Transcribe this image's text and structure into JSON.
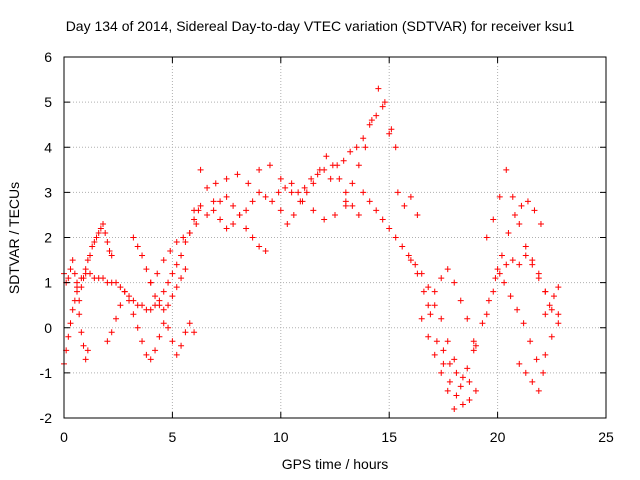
{
  "chart_data": {
    "type": "scatter",
    "title": "Day 134 of 2014, Sidereal Day-to-day VTEC variation (SDTVAR) for receiver ksu1",
    "xlabel": "GPS time / hours",
    "ylabel": "SDTVAR / TECUs",
    "xlim": [
      0,
      25
    ],
    "ylim": [
      -2,
      6
    ],
    "xticks": [
      "0",
      "5",
      "10",
      "15",
      "20",
      "25"
    ],
    "yticks": [
      "-2",
      "-1",
      "0",
      "1",
      "2",
      "3",
      "4",
      "5",
      "6"
    ],
    "grid": true,
    "marker": "+",
    "color": "#ff0000",
    "series": [
      {
        "x": [
          0.0,
          0.1,
          0.2,
          0.3,
          0.4,
          0.5,
          0.6,
          0.7,
          0.8,
          0.9,
          1.0,
          1.1,
          1.2,
          1.3,
          1.4,
          1.5,
          1.6,
          1.7,
          1.8,
          1.9,
          2.0,
          2.1,
          2.2
        ],
        "y": [
          1.2,
          1.0,
          1.1,
          1.3,
          1.5,
          1.2,
          0.9,
          0.6,
          0.9,
          1.1,
          1.3,
          1.5,
          1.6,
          1.8,
          1.9,
          2.0,
          2.1,
          2.2,
          2.3,
          2.1,
          1.9,
          1.7,
          1.6
        ]
      },
      {
        "x": [
          0.0,
          0.1,
          0.2,
          0.3,
          0.4,
          0.5,
          0.6,
          0.7,
          0.8,
          0.9,
          1.0,
          1.1
        ],
        "y": [
          -0.8,
          -0.5,
          -0.2,
          0.1,
          0.4,
          0.6,
          0.8,
          0.3,
          -0.1,
          -0.4,
          -0.7,
          -0.5
        ]
      },
      {
        "x": [
          0.6,
          0.8,
          1.0,
          1.2,
          1.4,
          1.6,
          1.8,
          2.0,
          2.2,
          2.4,
          2.6,
          2.8,
          3.0,
          3.2,
          3.4,
          3.6,
          3.8,
          4.0,
          4.2,
          4.4,
          4.6,
          4.8,
          5.0,
          5.2,
          5.4,
          5.6,
          5.8,
          6.0,
          6.2
        ],
        "y": [
          1.0,
          1.1,
          1.2,
          1.2,
          1.1,
          1.1,
          1.1,
          1.0,
          1.0,
          1.0,
          0.9,
          0.8,
          0.7,
          0.6,
          0.5,
          0.5,
          0.4,
          0.4,
          0.5,
          0.6,
          0.8,
          1.0,
          1.2,
          1.4,
          1.6,
          1.9,
          2.1,
          2.4,
          2.6
        ]
      },
      {
        "x": [
          2.0,
          2.2,
          2.4,
          2.6,
          2.8,
          3.0,
          3.2,
          3.4,
          3.6,
          3.8,
          4.0,
          4.2,
          4.4,
          4.6,
          4.8,
          5.0,
          5.2,
          5.4,
          5.6,
          5.8,
          6.0
        ],
        "y": [
          -0.3,
          -0.1,
          0.2,
          0.5,
          0.8,
          0.6,
          0.3,
          0.0,
          -0.3,
          -0.6,
          -0.7,
          -0.5,
          -0.2,
          0.1,
          0.0,
          -0.3,
          -0.6,
          -0.4,
          -0.1,
          0.1,
          -0.1
        ]
      },
      {
        "x": [
          3.2,
          3.4,
          3.6,
          3.8,
          4.0,
          4.2,
          4.4,
          4.6,
          4.8,
          5.0,
          5.2,
          5.4,
          5.6
        ],
        "y": [
          2.0,
          1.8,
          1.6,
          1.3,
          1.0,
          0.7,
          0.5,
          0.4,
          0.5,
          0.7,
          0.9,
          1.1,
          1.3
        ]
      },
      {
        "x": [
          4.0,
          4.3,
          4.6,
          4.9,
          5.2,
          5.5,
          5.8,
          6.1
        ],
        "y": [
          1.0,
          1.2,
          1.5,
          1.7,
          1.9,
          2.0,
          2.1,
          2.3
        ]
      },
      {
        "x": [
          6.0,
          6.3,
          6.6,
          6.9,
          7.2,
          7.5,
          7.8,
          8.1,
          8.4,
          8.7,
          9.0,
          9.3,
          9.6,
          9.9,
          10.2,
          10.5,
          10.8,
          11.1,
          11.4,
          11.7,
          12.0,
          12.3,
          12.6,
          12.9,
          13.2,
          13.5,
          13.8,
          14.1,
          14.4,
          14.7,
          15.0,
          15.3
        ],
        "y": [
          2.6,
          2.7,
          2.5,
          2.6,
          2.8,
          2.9,
          2.7,
          2.5,
          2.6,
          2.8,
          3.0,
          2.9,
          2.8,
          3.0,
          3.1,
          3.2,
          3.0,
          3.1,
          3.3,
          3.4,
          3.5,
          3.3,
          3.6,
          3.7,
          3.9,
          4.0,
          4.2,
          4.5,
          4.7,
          4.9,
          4.3,
          4.0
        ]
      },
      {
        "x": [
          6.3,
          6.6,
          6.9,
          7.2,
          7.5,
          7.8,
          8.1,
          8.4,
          8.7,
          9.0,
          9.3
        ],
        "y": [
          3.5,
          3.1,
          2.8,
          2.4,
          2.2,
          2.3,
          2.5,
          2.2,
          2.0,
          1.8,
          1.7
        ]
      },
      {
        "x": [
          7.0,
          7.5,
          8.0,
          8.5,
          9.0,
          9.5,
          10.0,
          10.5,
          11.0,
          11.5,
          12.0,
          12.5,
          13.0
        ],
        "y": [
          3.2,
          3.3,
          3.4,
          3.2,
          3.5,
          3.6,
          3.3,
          3.0,
          2.8,
          2.6,
          2.4,
          2.5,
          2.7
        ]
      },
      {
        "x": [
          10.0,
          10.3,
          10.6,
          10.9,
          11.2,
          11.5,
          11.8,
          12.1,
          12.4,
          12.7,
          13.0,
          13.3,
          13.6
        ],
        "y": [
          2.6,
          2.3,
          2.5,
          2.8,
          3.0,
          3.2,
          3.5,
          3.8,
          3.6,
          3.3,
          3.0,
          2.7,
          2.5
        ]
      },
      {
        "x": [
          13.0,
          13.3,
          13.6,
          13.9,
          14.2,
          14.5,
          14.8,
          15.1,
          15.4,
          15.7,
          16.0,
          16.3
        ],
        "y": [
          2.8,
          3.2,
          3.6,
          4.0,
          4.6,
          5.3,
          5.0,
          4.4,
          3.0,
          2.7,
          2.9,
          2.5
        ]
      },
      {
        "x": [
          13.8,
          14.1,
          14.4,
          14.7,
          15.0,
          15.3,
          15.6,
          15.9,
          16.2,
          16.5,
          16.8,
          17.1,
          17.4,
          17.7,
          18.0
        ],
        "y": [
          3.0,
          2.8,
          2.6,
          2.4,
          2.2,
          2.0,
          1.8,
          1.6,
          1.4,
          1.2,
          0.9,
          0.5,
          0.2,
          -0.3,
          -0.7
        ]
      },
      {
        "x": [
          16.0,
          16.3,
          16.6,
          16.9,
          17.2,
          17.5,
          17.8,
          18.1,
          18.4,
          18.7
        ],
        "y": [
          1.5,
          1.2,
          0.8,
          0.3,
          -0.3,
          -0.8,
          -1.2,
          -1.5,
          -1.7,
          -1.6
        ]
      },
      {
        "x": [
          16.5,
          16.8,
          17.1,
          17.4,
          17.7,
          18.0,
          18.3,
          18.6,
          18.9
        ],
        "y": [
          0.2,
          0.5,
          0.8,
          1.1,
          1.3,
          1.0,
          0.6,
          0.2,
          -0.3
        ]
      },
      {
        "x": [
          16.8,
          17.1,
          17.4,
          17.7,
          18.0,
          18.3,
          18.6,
          18.9
        ],
        "y": [
          -0.2,
          -0.6,
          -1.0,
          -1.4,
          -1.8,
          -1.3,
          -0.9,
          -0.5
        ]
      },
      {
        "x": [
          17.5,
          17.8,
          18.1,
          18.4,
          18.7,
          19.0
        ],
        "y": [
          -0.5,
          -0.8,
          -1.0,
          -1.1,
          -1.2,
          -1.4
        ]
      },
      {
        "x": [
          19.0,
          19.3,
          19.6,
          19.9,
          20.2,
          20.5,
          20.8,
          21.1,
          21.4,
          21.7,
          22.0
        ],
        "y": [
          -0.4,
          0.1,
          0.6,
          1.1,
          1.6,
          2.1,
          2.5,
          2.7,
          2.8,
          2.6,
          2.3
        ]
      },
      {
        "x": [
          19.5,
          19.8,
          20.1,
          20.4,
          20.7,
          21.0,
          21.3,
          21.6,
          21.9,
          22.2,
          22.5,
          22.8
        ],
        "y": [
          0.3,
          0.8,
          1.2,
          1.4,
          1.5,
          1.4,
          1.6,
          1.5,
          1.2,
          0.8,
          0.4,
          0.1
        ]
      },
      {
        "x": [
          19.5,
          19.8,
          20.1,
          20.4,
          20.7,
          21.0,
          21.3,
          21.6,
          21.9,
          22.2
        ],
        "y": [
          2.0,
          2.4,
          2.9,
          3.5,
          2.9,
          2.3,
          1.8,
          1.4,
          1.1,
          0.8
        ]
      },
      {
        "x": [
          20.0,
          20.3,
          20.6,
          20.9,
          21.2,
          21.5,
          21.8,
          22.1
        ],
        "y": [
          1.3,
          1.0,
          0.7,
          0.4,
          0.1,
          -0.3,
          -0.7,
          -1.0
        ]
      },
      {
        "x": [
          21.0,
          21.3,
          21.6,
          21.9,
          22.2,
          22.5,
          22.8
        ],
        "y": [
          -0.8,
          -1.0,
          -1.2,
          -1.4,
          -0.6,
          -0.2,
          0.3
        ]
      },
      {
        "x": [
          22.2,
          22.4,
          22.6,
          22.8
        ],
        "y": [
          0.3,
          0.5,
          0.7,
          0.9
        ]
      }
    ]
  }
}
